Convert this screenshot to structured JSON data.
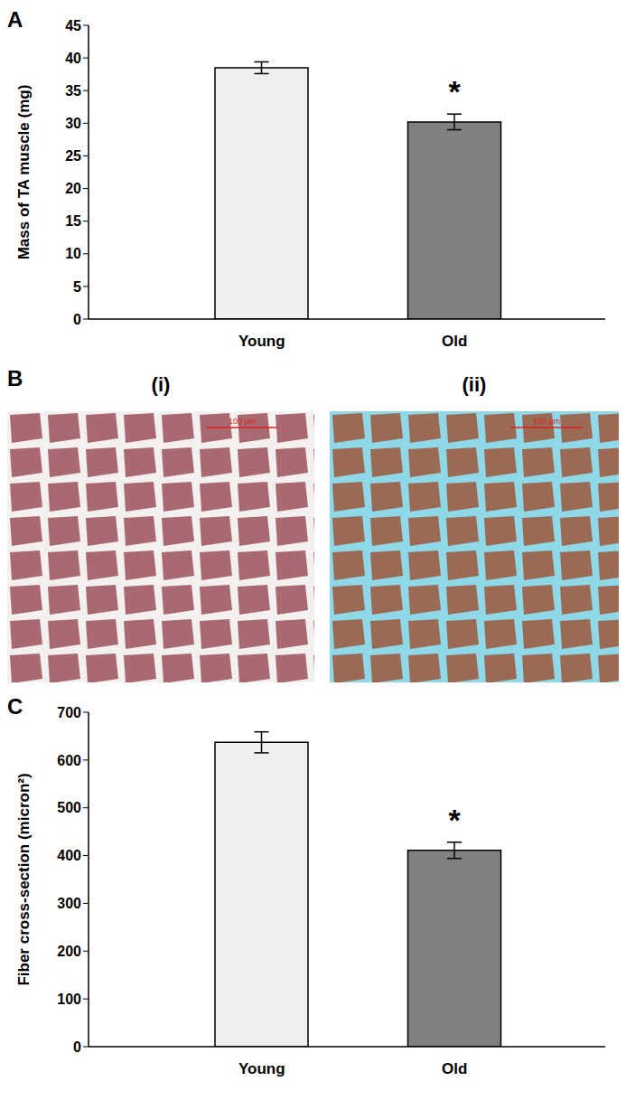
{
  "chart_data": [
    {
      "panel": "A",
      "type": "bar",
      "categories": [
        "Young",
        "Old"
      ],
      "values": [
        38.5,
        30.2
      ],
      "errors": [
        0.9,
        1.2
      ],
      "colors": [
        "#efefef",
        "#808080"
      ],
      "ylabel": "Mass of TA muscle (mg)",
      "ylim": [
        0,
        45
      ],
      "yticks": [
        0,
        5,
        10,
        15,
        20,
        25,
        30,
        35,
        40,
        45
      ],
      "grid": false,
      "annotations": [
        {
          "category": "Old",
          "text": "*"
        }
      ]
    },
    {
      "panel": "C",
      "type": "bar",
      "categories": [
        "Young",
        "Old"
      ],
      "values": [
        637,
        411
      ],
      "errors": [
        22,
        17
      ],
      "colors": [
        "#efefef",
        "#808080"
      ],
      "ylabel": "Fiber cross-section (micron²)",
      "ylim": [
        0,
        700
      ],
      "yticks": [
        0,
        100,
        200,
        300,
        400,
        500,
        600,
        700
      ],
      "grid": false,
      "annotations": [
        {
          "category": "Old",
          "text": "*"
        }
      ]
    }
  ],
  "images": {
    "panel": "B",
    "items": [
      {
        "label": "(i)",
        "scale_bar": "100 µm"
      },
      {
        "label": "(ii)",
        "scale_bar": "100 µm"
      }
    ]
  }
}
